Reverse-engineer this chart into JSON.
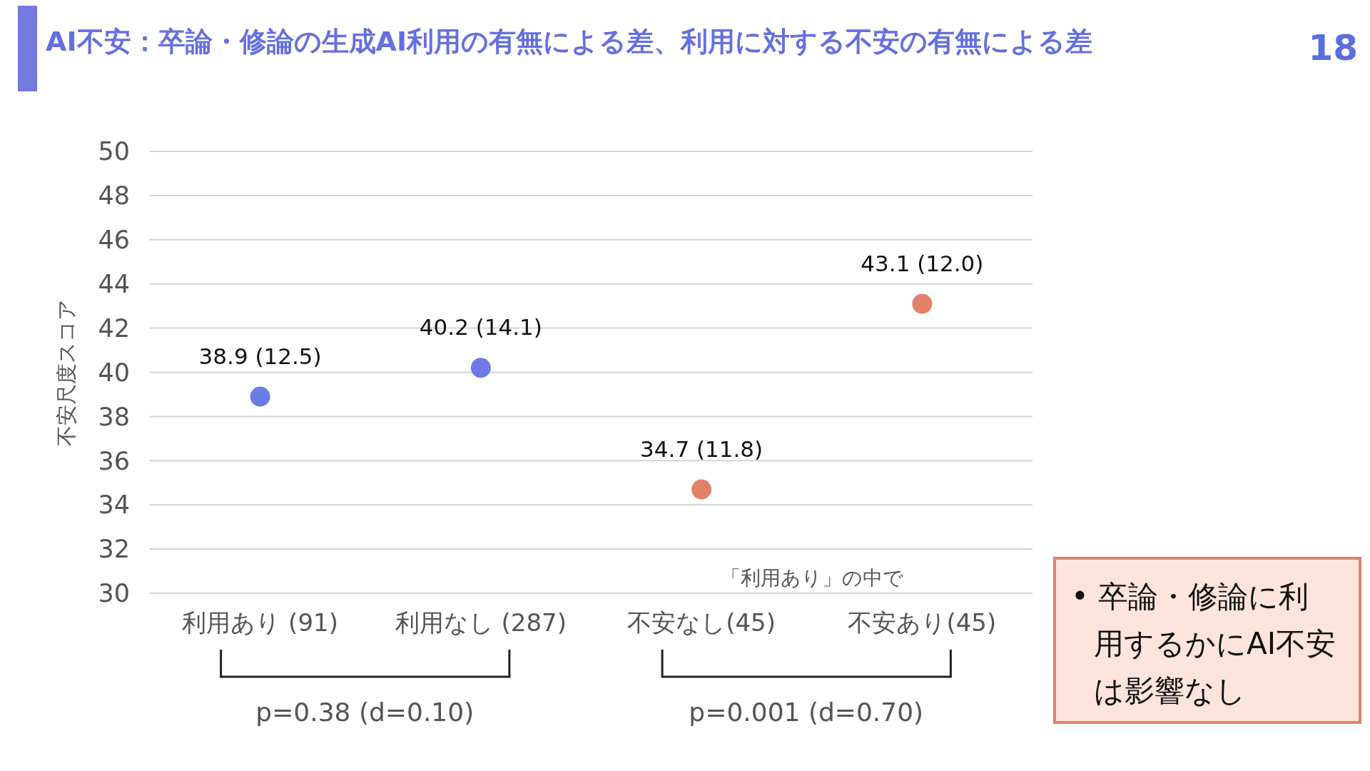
{
  "chart_data": {
    "type": "scatter",
    "title": "AI不安：卒論・修論の生成AI利用の有無による差、利用に対する不安の有無による差",
    "ylabel": "不安尺度スコア",
    "categories": [
      "利用あり (91)",
      "利用なし (287)",
      "不安なし(45)",
      "不安あり(45)"
    ],
    "series": [
      {
        "color": "#6b7be6",
        "values": [
          38.9,
          40.2,
          null,
          null
        ],
        "value_labels": [
          "38.9 (12.5)",
          "40.2 (14.1)",
          null,
          null
        ]
      },
      {
        "color": "#e0826a",
        "values": [
          null,
          null,
          34.7,
          43.1
        ],
        "value_labels": [
          null,
          null,
          "34.7 (11.8)",
          "43.1 (12.0)"
        ]
      }
    ],
    "ylim": [
      30,
      50
    ],
    "yticks": [
      30,
      32,
      34,
      36,
      38,
      40,
      42,
      44,
      46,
      48,
      50
    ],
    "grid": "y",
    "marker": "circle",
    "annotations": [
      "「利用あり」の中で",
      "p=0.38 (d=0.10)",
      "p=0.001 (d=0.70)",
      "18",
      "• 卒論・修論に利用するかにAI不安は影響なし"
    ]
  }
}
